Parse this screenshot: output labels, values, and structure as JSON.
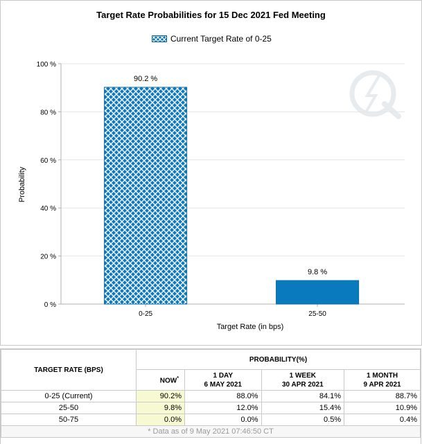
{
  "chart_data": {
    "type": "bar",
    "title": "Target Rate Probabilities for 15 Dec 2021 Fed Meeting",
    "legend": "Current Target Rate of 0-25",
    "xlabel": "Target Rate (in bps)",
    "ylabel": "Probability",
    "categories": [
      "0-25",
      "25-50"
    ],
    "values": [
      90.2,
      9.8
    ],
    "value_labels": [
      "90.2 %",
      "9.8 %"
    ],
    "bar_styles": [
      "hatched",
      "solid"
    ],
    "ylim": [
      0,
      100
    ],
    "yticks": [
      0,
      20,
      40,
      60,
      80,
      100
    ],
    "ytick_labels": [
      "0 %",
      "20 %",
      "40 %",
      "60 %",
      "80 %",
      "100 %"
    ],
    "grid": true,
    "legend_position": "top-center",
    "colors": {
      "bar": "#0a7abf",
      "hatch": "#ffffff",
      "axis": "#b0b0b0",
      "grid": "#e4e4e4"
    }
  },
  "table": {
    "header_target": "TARGET RATE (BPS)",
    "header_probability": "PROBABILITY(%)",
    "columns": [
      {
        "line1": "NOW",
        "line2": "",
        "marker": "*"
      },
      {
        "line1": "1 DAY",
        "line2": "6 MAY 2021",
        "marker": ""
      },
      {
        "line1": "1 WEEK",
        "line2": "30 APR 2021",
        "marker": ""
      },
      {
        "line1": "1 MONTH",
        "line2": "9 APR 2021",
        "marker": ""
      }
    ],
    "rows": [
      {
        "label": "0-25 (Current)",
        "values": [
          "90.2%",
          "88.0%",
          "84.1%",
          "88.7%"
        ]
      },
      {
        "label": "25-50",
        "values": [
          "9.8%",
          "12.0%",
          "15.4%",
          "10.9%"
        ]
      },
      {
        "label": "50-75",
        "values": [
          "0.0%",
          "0.0%",
          "0.5%",
          "0.4%"
        ]
      }
    ],
    "footnote": "* Data as of 9 May 2021 07:46:50 CT"
  }
}
